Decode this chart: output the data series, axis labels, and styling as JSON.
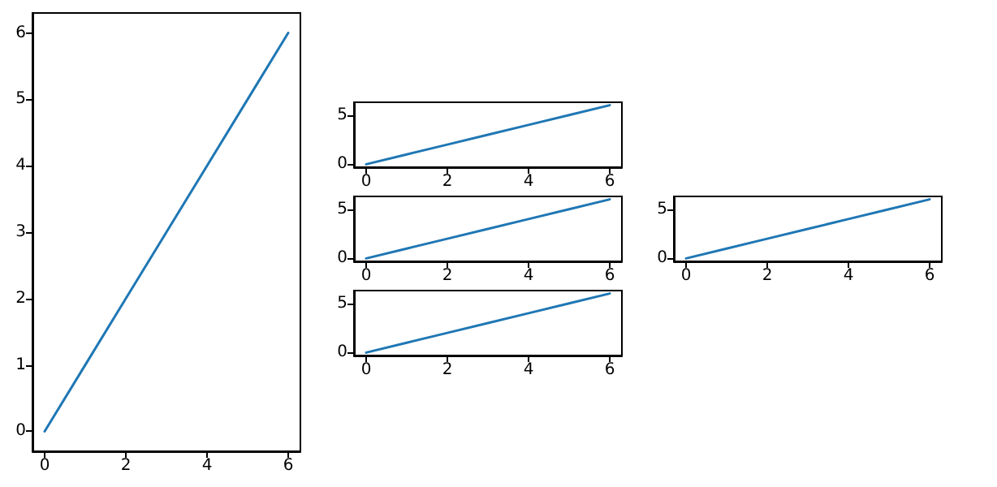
{
  "chart_data": [
    {
      "type": "line",
      "x": [
        0,
        1,
        2,
        3,
        4,
        5,
        6
      ],
      "values": [
        0,
        1,
        2,
        3,
        4,
        5,
        6
      ],
      "color": "#1f77b4",
      "xlim": [
        -0.3,
        6.3
      ],
      "ylim": [
        -0.3,
        6.3
      ],
      "xticks": [
        0,
        2,
        4,
        6
      ],
      "yticks": [
        0,
        1,
        2,
        3,
        4,
        5,
        6
      ]
    },
    {
      "type": "line",
      "x": [
        0,
        1,
        2,
        3,
        4,
        5,
        6
      ],
      "values": [
        0,
        1,
        2,
        3,
        4,
        5,
        6
      ],
      "color": "#1f77b4",
      "xlim": [
        -0.3,
        6.3
      ],
      "ylim": [
        -0.3,
        6.3
      ],
      "xticks": [
        0,
        2,
        4,
        6
      ],
      "yticks": [
        0,
        5
      ]
    },
    {
      "type": "line",
      "x": [
        0,
        1,
        2,
        3,
        4,
        5,
        6
      ],
      "values": [
        0,
        1,
        2,
        3,
        4,
        5,
        6
      ],
      "color": "#1f77b4",
      "xlim": [
        -0.3,
        6.3
      ],
      "ylim": [
        -0.3,
        6.3
      ],
      "xticks": [
        0,
        2,
        4,
        6
      ],
      "yticks": [
        0,
        5
      ]
    },
    {
      "type": "line",
      "x": [
        0,
        1,
        2,
        3,
        4,
        5,
        6
      ],
      "values": [
        0,
        1,
        2,
        3,
        4,
        5,
        6
      ],
      "color": "#1f77b4",
      "xlim": [
        -0.3,
        6.3
      ],
      "ylim": [
        -0.3,
        6.3
      ],
      "xticks": [
        0,
        2,
        4,
        6
      ],
      "yticks": [
        0,
        5
      ]
    },
    {
      "type": "line",
      "x": [
        0,
        1,
        2,
        3,
        4,
        5,
        6
      ],
      "values": [
        0,
        1,
        2,
        3,
        4,
        5,
        6
      ],
      "color": "#1f77b4",
      "xlim": [
        -0.3,
        6.3
      ],
      "ylim": [
        -0.3,
        6.3
      ],
      "xticks": [
        0,
        2,
        4,
        6
      ],
      "yticks": [
        0,
        5
      ]
    }
  ]
}
